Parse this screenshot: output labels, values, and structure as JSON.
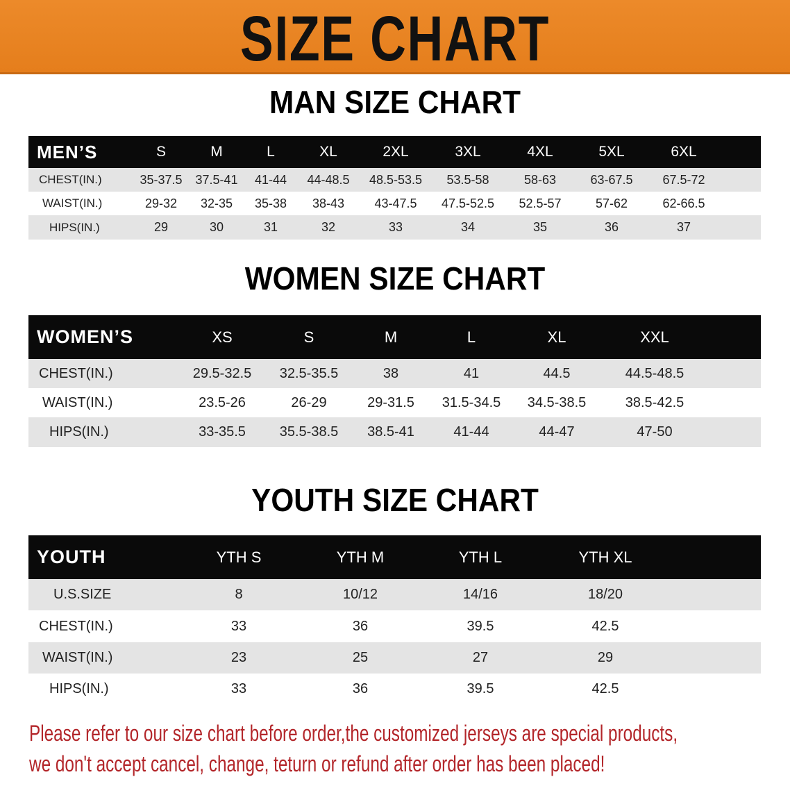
{
  "banner_title": "SIZE CHART",
  "colors": {
    "banner": "#e8841f",
    "header_row": "#0a0a0a",
    "stripe": "#e4e4e4",
    "notice": "#b3262a"
  },
  "men": {
    "title": "MAN SIZE CHART",
    "columns": [
      "MEN’S",
      "S",
      "M",
      "L",
      "XL",
      "2XL",
      "3XL",
      "4XL",
      "5XL",
      "6XL"
    ],
    "rows": [
      [
        "CHEST(IN.)",
        "35-37.5",
        "37.5-41",
        "41-44",
        "44-48.5",
        "48.5-53.5",
        "53.5-58",
        "58-63",
        "63-67.5",
        "67.5-72"
      ],
      [
        "WAIST(IN.)",
        "29-32",
        "32-35",
        "35-38",
        "38-43",
        "43-47.5",
        "47.5-52.5",
        "52.5-57",
        "57-62",
        "62-66.5"
      ],
      [
        "HIPS(IN.)",
        "29",
        "30",
        "31",
        "32",
        "33",
        "34",
        "35",
        "36",
        "37"
      ]
    ]
  },
  "women": {
    "title": "WOMEN SIZE CHART",
    "columns": [
      "WOMEN’S",
      "XS",
      "S",
      "M",
      "L",
      "XL",
      "XXL"
    ],
    "rows": [
      [
        "CHEST(IN.)",
        "29.5-32.5",
        "32.5-35.5",
        "38",
        "41",
        "44.5",
        "44.5-48.5"
      ],
      [
        "WAIST(IN.)",
        "23.5-26",
        "26-29",
        "29-31.5",
        "31.5-34.5",
        "34.5-38.5",
        "38.5-42.5"
      ],
      [
        "HIPS(IN.)",
        "33-35.5",
        "35.5-38.5",
        "38.5-41",
        "41-44",
        "44-47",
        "47-50"
      ]
    ]
  },
  "youth": {
    "title": "YOUTH SIZE CHART",
    "columns": [
      "YOUTH",
      "YTH S",
      "YTH M",
      "YTH L",
      "YTH XL"
    ],
    "rows": [
      [
        "U.S.SIZE",
        "8",
        "10/12",
        "14/16",
        "18/20"
      ],
      [
        "CHEST(IN.)",
        "33",
        "36",
        "39.5",
        "42.5"
      ],
      [
        "WAIST(IN.)",
        "23",
        "25",
        "27",
        "29"
      ],
      [
        "HIPS(IN.)",
        "33",
        "36",
        "39.5",
        "42.5"
      ]
    ]
  },
  "notice": [
    "Please refer to our size chart before order,the customized jerseys are special products,",
    "we don't accept cancel, change, teturn or refund after order has been placed!"
  ]
}
